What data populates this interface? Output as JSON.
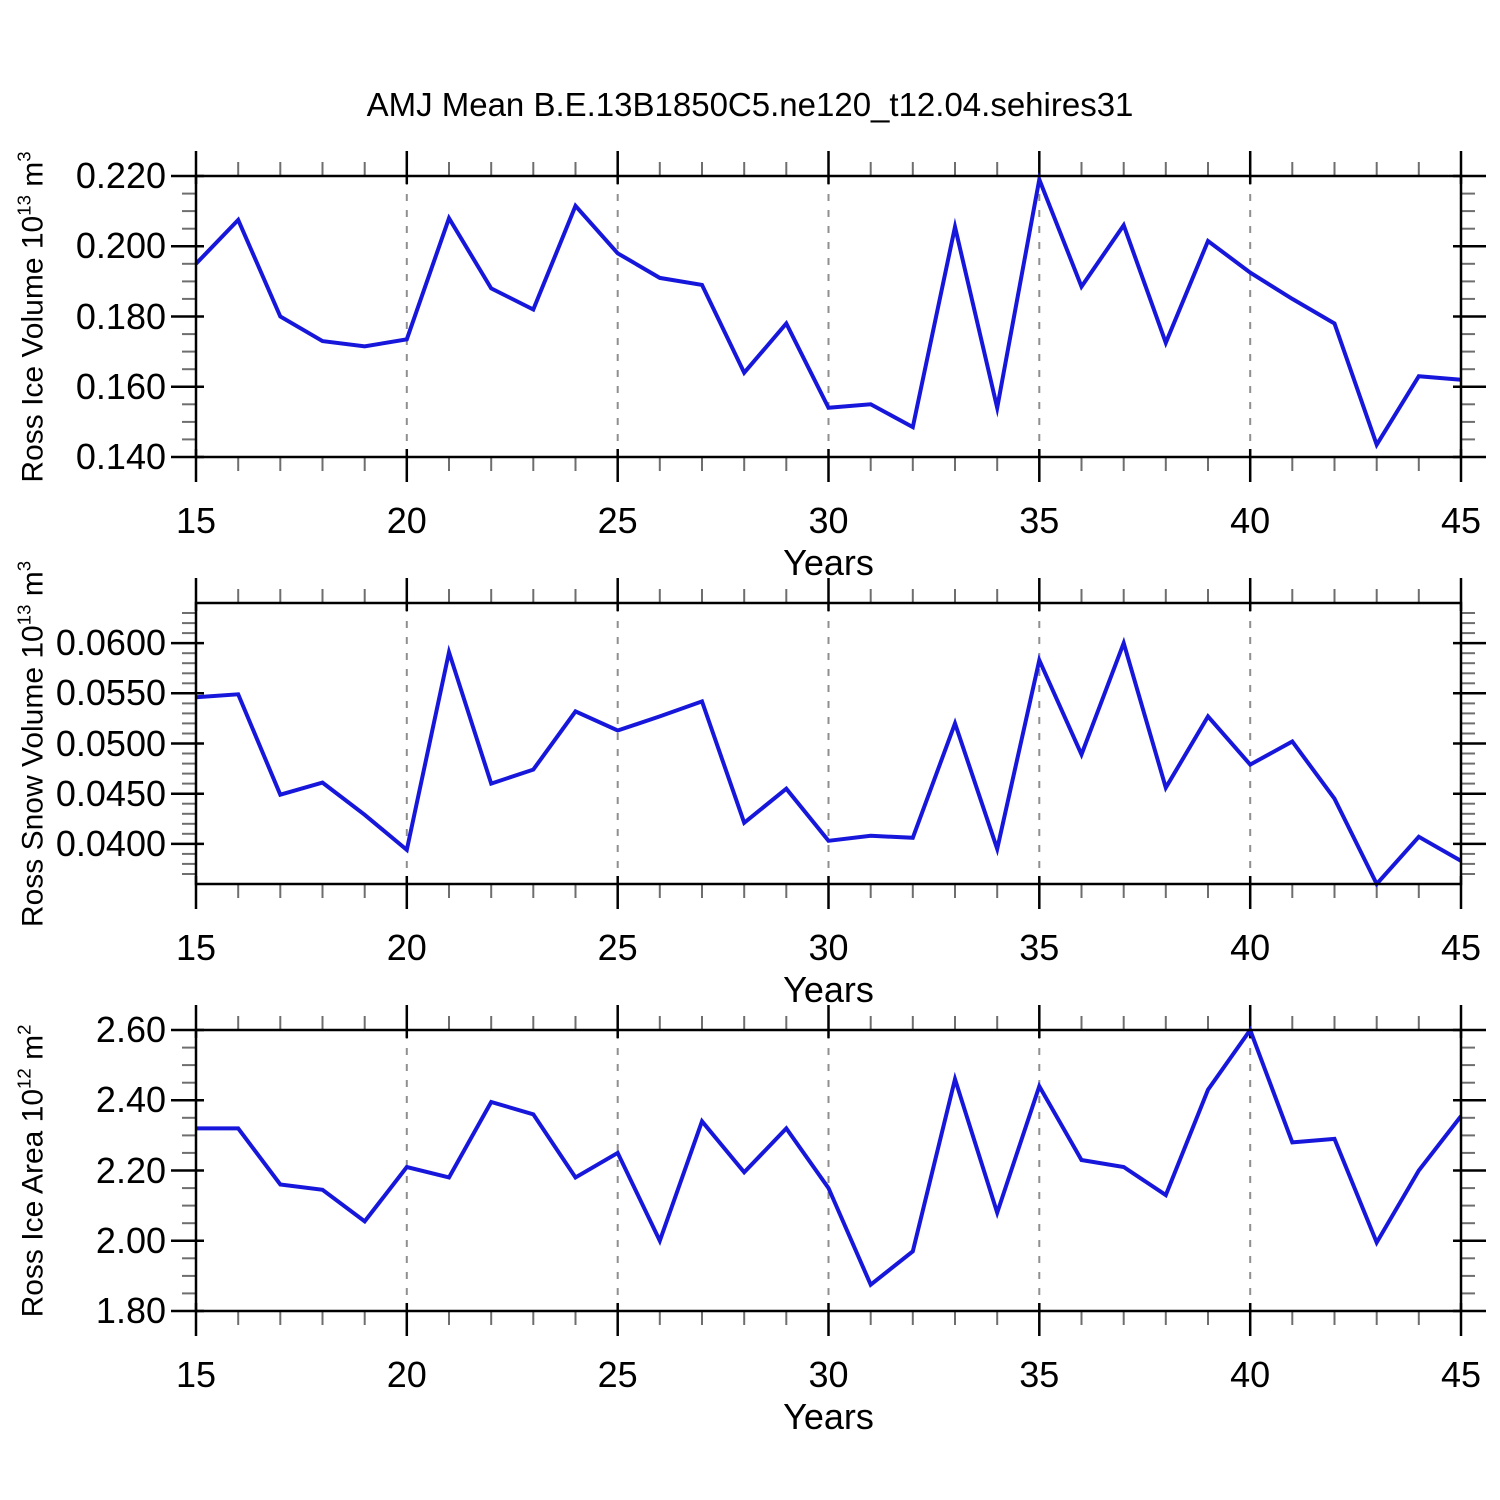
{
  "title": "AMJ Mean B.E.13B1850C5.ne120_t12.04.sehires31",
  "style": {
    "line_color": "#1717dc",
    "grid_color": "#8f8f8f",
    "frame_color": "#000000",
    "major_tick_color": "#000000",
    "minor_tick_color": "#6e6e6e",
    "background": "#ffffff"
  },
  "chart_data": [
    {
      "type": "line",
      "series_name": "Ross Ice Volume",
      "xlabel": "Years",
      "ylabel_text": "Ross Ice Volume 10^13 m^3",
      "ylabel_segments": [
        {
          "t": "Ross Ice Volume 10"
        },
        {
          "t": "13",
          "sup": true
        },
        {
          "t": " m"
        },
        {
          "t": "3",
          "sup": true
        }
      ],
      "xlim": [
        15,
        45
      ],
      "ylim": [
        0.14,
        0.22
      ],
      "x_major_ticks": [
        {
          "v": 15,
          "label": "15"
        },
        {
          "v": 20,
          "label": "20"
        },
        {
          "v": 25,
          "label": "25"
        },
        {
          "v": 30,
          "label": "30"
        },
        {
          "v": 35,
          "label": "35"
        },
        {
          "v": 40,
          "label": "40"
        },
        {
          "v": 45,
          "label": "45"
        }
      ],
      "x_minor_step": 1,
      "x_gridlines": [
        20,
        25,
        30,
        35,
        40
      ],
      "y_major_ticks": [
        {
          "v": 0.22,
          "label": "0.220"
        },
        {
          "v": 0.2,
          "label": "0.200"
        },
        {
          "v": 0.18,
          "label": "0.180"
        },
        {
          "v": 0.16,
          "label": "0.160"
        },
        {
          "v": 0.14,
          "label": "0.140"
        }
      ],
      "y_minor_step": 0.005,
      "x": [
        15,
        16,
        17,
        18,
        19,
        20,
        21,
        22,
        23,
        24,
        25,
        26,
        27,
        28,
        29,
        30,
        31,
        32,
        33,
        34,
        35,
        36,
        37,
        38,
        39,
        40,
        41,
        42,
        43,
        44,
        45
      ],
      "y": [
        0.195,
        0.2075,
        0.18,
        0.173,
        0.1715,
        0.1735,
        0.208,
        0.188,
        0.182,
        0.2115,
        0.198,
        0.191,
        0.189,
        0.164,
        0.178,
        0.154,
        0.155,
        0.1485,
        0.2055,
        0.154,
        0.219,
        0.1885,
        0.206,
        0.1725,
        0.2015,
        0.1925,
        0.185,
        0.178,
        0.1435,
        0.163,
        0.162
      ]
    },
    {
      "type": "line",
      "series_name": "Ross Snow Volume",
      "xlabel": "Years",
      "ylabel_text": "Ross Snow Volume 10^13 m^3",
      "ylabel_segments": [
        {
          "t": "Ross Snow Volume 10"
        },
        {
          "t": "13",
          "sup": true
        },
        {
          "t": " m"
        },
        {
          "t": "3",
          "sup": true
        }
      ],
      "xlim": [
        15,
        45
      ],
      "ylim": [
        0.036,
        0.064
      ],
      "x_major_ticks": [
        {
          "v": 15,
          "label": "15"
        },
        {
          "v": 20,
          "label": "20"
        },
        {
          "v": 25,
          "label": "25"
        },
        {
          "v": 30,
          "label": "30"
        },
        {
          "v": 35,
          "label": "35"
        },
        {
          "v": 40,
          "label": "40"
        },
        {
          "v": 45,
          "label": "45"
        }
      ],
      "x_minor_step": 1,
      "x_gridlines": [
        20,
        25,
        30,
        35,
        40
      ],
      "y_major_ticks": [
        {
          "v": 0.06,
          "label": "0.0600"
        },
        {
          "v": 0.055,
          "label": "0.0550"
        },
        {
          "v": 0.05,
          "label": "0.0500"
        },
        {
          "v": 0.045,
          "label": "0.0450"
        },
        {
          "v": 0.04,
          "label": "0.0400"
        }
      ],
      "y_minor_step": 0.001,
      "x": [
        15,
        16,
        17,
        18,
        19,
        20,
        21,
        22,
        23,
        24,
        25,
        26,
        27,
        28,
        29,
        30,
        31,
        32,
        33,
        34,
        35,
        36,
        37,
        38,
        39,
        40,
        41,
        42,
        43,
        44,
        45
      ],
      "y": [
        0.0546,
        0.0549,
        0.0449,
        0.0461,
        0.0429,
        0.0394,
        0.0591,
        0.046,
        0.0474,
        0.0532,
        0.0513,
        0.0527,
        0.0542,
        0.0421,
        0.0455,
        0.0403,
        0.0408,
        0.0406,
        0.052,
        0.0395,
        0.0583,
        0.0489,
        0.06,
        0.0456,
        0.0527,
        0.0479,
        0.0502,
        0.0445,
        0.036,
        0.0407,
        0.0383
      ]
    },
    {
      "type": "line",
      "series_name": "Ross Ice Area",
      "xlabel": "Years",
      "ylabel_text": "Ross Ice Area 10^12 m^2",
      "ylabel_segments": [
        {
          "t": "Ross Ice Area 10"
        },
        {
          "t": "12",
          "sup": true
        },
        {
          "t": " m"
        },
        {
          "t": "2",
          "sup": true
        }
      ],
      "xlim": [
        15,
        45
      ],
      "ylim": [
        1.8,
        2.6
      ],
      "x_major_ticks": [
        {
          "v": 15,
          "label": "15"
        },
        {
          "v": 20,
          "label": "20"
        },
        {
          "v": 25,
          "label": "25"
        },
        {
          "v": 30,
          "label": "30"
        },
        {
          "v": 35,
          "label": "35"
        },
        {
          "v": 40,
          "label": "40"
        },
        {
          "v": 45,
          "label": "45"
        }
      ],
      "x_minor_step": 1,
      "x_gridlines": [
        20,
        25,
        30,
        35,
        40
      ],
      "y_major_ticks": [
        {
          "v": 2.6,
          "label": "2.60"
        },
        {
          "v": 2.4,
          "label": "2.40"
        },
        {
          "v": 2.2,
          "label": "2.20"
        },
        {
          "v": 2.0,
          "label": "2.00"
        },
        {
          "v": 1.8,
          "label": "1.80"
        }
      ],
      "y_minor_step": 0.05,
      "x": [
        15,
        16,
        17,
        18,
        19,
        20,
        21,
        22,
        23,
        24,
        25,
        26,
        27,
        28,
        29,
        30,
        31,
        32,
        33,
        34,
        35,
        36,
        37,
        38,
        39,
        40,
        41,
        42,
        43,
        44,
        45
      ],
      "y": [
        2.32,
        2.32,
        2.16,
        2.145,
        2.055,
        2.21,
        2.18,
        2.395,
        2.36,
        2.18,
        2.25,
        2.0,
        2.34,
        2.195,
        2.32,
        2.15,
        1.875,
        1.97,
        2.46,
        2.08,
        2.44,
        2.23,
        2.21,
        2.13,
        2.43,
        2.6,
        2.28,
        2.29,
        1.995,
        2.2,
        2.355
      ]
    }
  ]
}
